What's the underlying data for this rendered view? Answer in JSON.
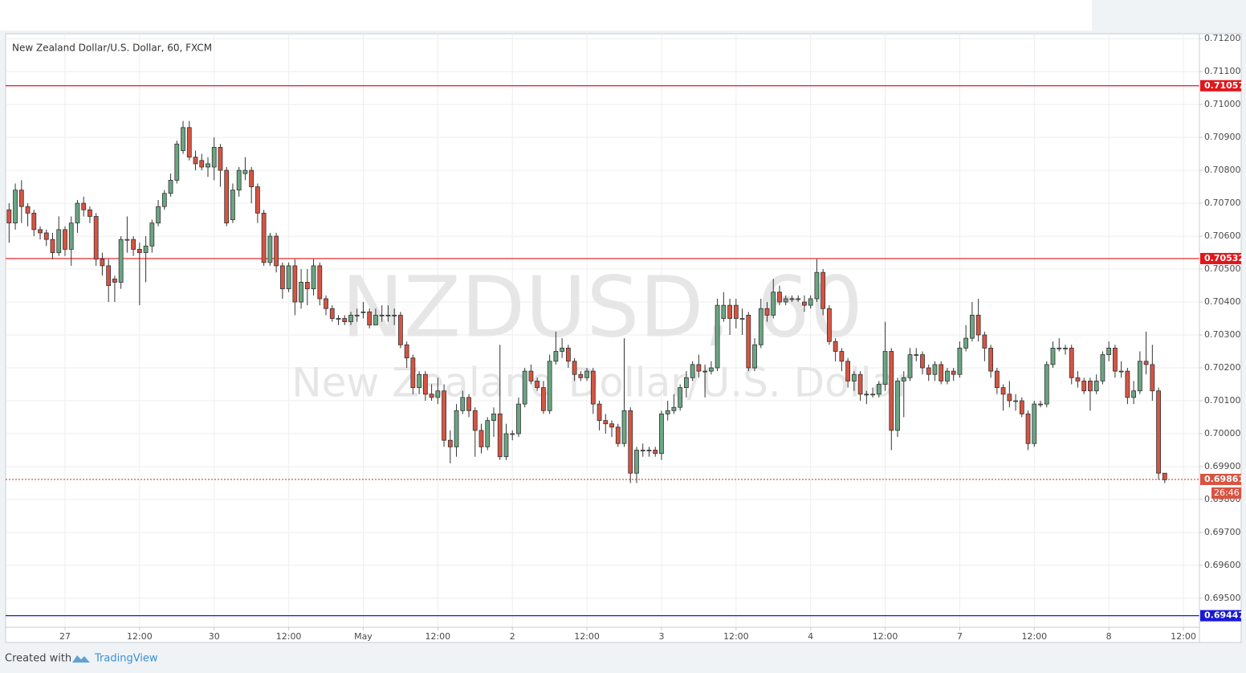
{
  "chart_data": {
    "type": "candlestick",
    "title": "New Zealand Dollar/U.S. Dollar, 60, FXCM",
    "watermark": {
      "symbol": "NZDUSD, 60",
      "description": "New Zealand Dollar/U.S. Dollar"
    },
    "up_color": "#6ba583",
    "down_color": "#d75442",
    "wick_color": "#333333",
    "grid": true,
    "xlim": [
      14.44,
      206.58
    ],
    "xticks": [
      {
        "value": 24,
        "label": "27"
      },
      {
        "value": 36,
        "label": "12:00"
      },
      {
        "value": 48,
        "label": "30"
      },
      {
        "value": 60,
        "label": "12:00"
      },
      {
        "value": 72,
        "label": "May"
      },
      {
        "value": 84,
        "label": "12:00"
      },
      {
        "value": 96,
        "label": "2"
      },
      {
        "value": 108,
        "label": "12:00"
      },
      {
        "value": 120,
        "label": "3"
      },
      {
        "value": 132,
        "label": "12:00"
      },
      {
        "value": 144,
        "label": "4"
      },
      {
        "value": 156,
        "label": "12:00"
      },
      {
        "value": 168,
        "label": "7"
      },
      {
        "value": 180,
        "label": "12:00"
      },
      {
        "value": 192,
        "label": "8"
      },
      {
        "value": 204,
        "label": "12:00"
      }
    ],
    "ylim": [
      0.69412,
      0.71215
    ],
    "yticks": [
      {
        "value": 0.695,
        "label": "0.69500"
      },
      {
        "value": 0.696,
        "label": "0.69600"
      },
      {
        "value": 0.697,
        "label": "0.69700"
      },
      {
        "value": 0.698,
        "label": "0.69800"
      },
      {
        "value": 0.699,
        "label": "0.69900"
      },
      {
        "value": 0.7,
        "label": "0.70000"
      },
      {
        "value": 0.701,
        "label": "0.70100"
      },
      {
        "value": 0.702,
        "label": "0.70200"
      },
      {
        "value": 0.703,
        "label": "0.70300"
      },
      {
        "value": 0.704,
        "label": "0.70400"
      },
      {
        "value": 0.705,
        "label": "0.70500"
      },
      {
        "value": 0.706,
        "label": "0.70600"
      },
      {
        "value": 0.707,
        "label": "0.70700"
      },
      {
        "value": 0.708,
        "label": "0.70800"
      },
      {
        "value": 0.709,
        "label": "0.70900"
      },
      {
        "value": 0.71,
        "label": "0.71000"
      },
      {
        "value": 0.711,
        "label": "0.71100"
      },
      {
        "value": 0.712,
        "label": "0.71200"
      }
    ],
    "levels": [
      {
        "value": 0.71057,
        "color": "#e0161b",
        "style": "solid"
      },
      {
        "value": 0.70532,
        "color": "#e0161b",
        "style": "solid"
      },
      {
        "value": 0.69861,
        "color": "#d75442",
        "style": "dotted"
      },
      {
        "value": 0.69447,
        "color": "#1a1ad6",
        "style": "solid"
      }
    ],
    "countdown": "26:46",
    "x": [
      15,
      16,
      17,
      18,
      19,
      20,
      21,
      22,
      23,
      24,
      25,
      26,
      27,
      28,
      29,
      30,
      31,
      32,
      33,
      34,
      35,
      36,
      37,
      38,
      39,
      40,
      41,
      42,
      43,
      44,
      45,
      46,
      47,
      48,
      49,
      50,
      51,
      52,
      53,
      54,
      55,
      56,
      57,
      58,
      59,
      60,
      61,
      62,
      63,
      64,
      65,
      66,
      67,
      68,
      69,
      70,
      71,
      72,
      73,
      74,
      75,
      76,
      77,
      78,
      79,
      80,
      81,
      82,
      83,
      84,
      85,
      86,
      87,
      88,
      89,
      90,
      91,
      92,
      93,
      94,
      95,
      96,
      97,
      98,
      99,
      100,
      101,
      102,
      103,
      104,
      105,
      106,
      107,
      108,
      109,
      110,
      111,
      112,
      113,
      114,
      115,
      116,
      117,
      118,
      119,
      120,
      121,
      122,
      123,
      124,
      125,
      126,
      127,
      128,
      129,
      130,
      131,
      132,
      133,
      134,
      135,
      136,
      137,
      138,
      139,
      140,
      141,
      142,
      143,
      144,
      145,
      146,
      147,
      148,
      149,
      150,
      151,
      152,
      153,
      154,
      155,
      156,
      157,
      158,
      159,
      160,
      161,
      162,
      163,
      164,
      165,
      166,
      167,
      168,
      169,
      170,
      171,
      172,
      173,
      174,
      175,
      176,
      177,
      178,
      179,
      180,
      181,
      182,
      183,
      184,
      185,
      186,
      187,
      188,
      189,
      190,
      191,
      192,
      193,
      194,
      195,
      196,
      197,
      198,
      199,
      200,
      201
    ],
    "open": [
      0.7068,
      0.7064,
      0.7074,
      0.7069,
      0.7067,
      0.7062,
      0.7061,
      0.7059,
      0.7055,
      0.7062,
      0.7056,
      0.7064,
      0.707,
      0.7068,
      0.7066,
      0.7053,
      0.7051,
      0.7047,
      0.7046,
      0.7059,
      0.7059,
      0.7056,
      0.7055,
      0.7057,
      0.7064,
      0.7069,
      0.7073,
      0.7077,
      0.7086,
      0.7093,
      0.7084,
      0.7083,
      0.7081,
      0.7081,
      0.7087,
      0.708,
      0.7065,
      0.7074,
      0.7079,
      0.708,
      0.7075,
      0.7067,
      0.7052,
      0.706,
      0.7051,
      0.7044,
      0.7051,
      0.704,
      0.7046,
      0.7044,
      0.7051,
      0.7041,
      0.7038,
      0.7035,
      0.7035,
      0.7034,
      0.7036,
      0.7037,
      0.7037,
      0.7033,
      0.7036,
      0.7036,
      0.7036,
      0.7036,
      0.7027,
      0.7023,
      0.7014,
      0.7018,
      0.7012,
      0.7011,
      0.7013,
      0.6998,
      0.6996,
      0.7007,
      0.7011,
      0.7007,
      0.7001,
      0.6996,
      0.7004,
      0.7006,
      0.6993,
      0.7,
      0.7,
      0.7009,
      0.7019,
      0.7016,
      0.7014,
      0.7007,
      0.7022,
      0.7025,
      0.7026,
      0.7022,
      0.7018,
      0.7017,
      0.7019,
      0.7009,
      0.7004,
      0.7003,
      0.7002,
      0.6997,
      0.7007,
      0.6988,
      0.6995,
      0.6995,
      0.6995,
      0.6994,
      0.7006,
      0.7007,
      0.7008,
      0.7014,
      0.7017,
      0.7021,
      0.7019,
      0.7019,
      0.702,
      0.7035,
      0.7039,
      0.7039,
      0.7035,
      0.7036,
      0.702,
      0.7027,
      0.7038,
      0.7036,
      0.7043,
      0.704,
      0.7041,
      0.7041,
      0.704,
      0.7039,
      0.7041,
      0.7049,
      0.7038,
      0.7028,
      0.7025,
      0.7022,
      0.7016,
      0.7018,
      0.7012,
      0.7012,
      0.7012,
      0.7015,
      0.7025,
      0.7001,
      0.7016,
      0.7017,
      0.7024,
      0.7024,
      0.702,
      0.7018,
      0.7021,
      0.7016,
      0.7019,
      0.7018,
      0.7026,
      0.7029,
      0.7036,
      0.703,
      0.7026,
      0.7019,
      0.7014,
      0.7012,
      0.701,
      0.701,
      0.7006,
      0.6997,
      0.7009,
      0.7009,
      0.7021,
      0.7026,
      0.7026,
      0.7026,
      0.7017,
      0.7016,
      0.7016,
      0.7013,
      0.7016,
      0.7024,
      0.7026,
      0.7019,
      0.7019,
      0.7011,
      0.7013,
      0.7022,
      0.7021,
      0.7013,
      0.6988
    ],
    "high": [
      0.707,
      0.7076,
      0.7077,
      0.707,
      0.7068,
      0.7063,
      0.7062,
      0.7061,
      0.7066,
      0.7063,
      0.7066,
      0.7071,
      0.7072,
      0.7069,
      0.7067,
      0.7055,
      0.7053,
      0.7048,
      0.706,
      0.7066,
      0.706,
      0.7058,
      0.706,
      0.7065,
      0.7071,
      0.7074,
      0.7079,
      0.7089,
      0.7095,
      0.7095,
      0.7086,
      0.7085,
      0.7084,
      0.709,
      0.7088,
      0.7081,
      0.7076,
      0.7081,
      0.7084,
      0.7081,
      0.7076,
      0.7068,
      0.7061,
      0.7061,
      0.7052,
      0.7052,
      0.7053,
      0.705,
      0.705,
      0.7053,
      0.7052,
      0.7042,
      0.7039,
      0.7036,
      0.7036,
      0.7037,
      0.7038,
      0.704,
      0.7038,
      0.7038,
      0.7039,
      0.7039,
      0.7038,
      0.7037,
      0.7028,
      0.7024,
      0.7019,
      0.7019,
      0.7015,
      0.7017,
      0.7015,
      0.7001,
      0.7009,
      0.7013,
      0.7012,
      0.7008,
      0.7003,
      0.7005,
      0.7008,
      0.7027,
      0.7003,
      0.7001,
      0.7011,
      0.702,
      0.7021,
      0.7017,
      0.7016,
      0.7024,
      0.7031,
      0.7029,
      0.7027,
      0.7023,
      0.7019,
      0.702,
      0.702,
      0.701,
      0.7006,
      0.7004,
      0.7003,
      0.7029,
      0.7008,
      0.6996,
      0.6997,
      0.6996,
      0.6996,
      0.7007,
      0.701,
      0.7012,
      0.7015,
      0.7019,
      0.7022,
      0.7024,
      0.7021,
      0.7022,
      0.7041,
      0.7043,
      0.7041,
      0.7041,
      0.7038,
      0.7037,
      0.7029,
      0.7041,
      0.704,
      0.7047,
      0.7045,
      0.7042,
      0.7042,
      0.7042,
      0.7042,
      0.7042,
      0.7053,
      0.705,
      0.7039,
      0.7029,
      0.7026,
      0.7023,
      0.7019,
      0.7019,
      0.7013,
      0.7014,
      0.7016,
      0.7034,
      0.7026,
      0.7017,
      0.7019,
      0.7026,
      0.7026,
      0.7025,
      0.7021,
      0.7022,
      0.7022,
      0.702,
      0.702,
      0.7028,
      0.7033,
      0.704,
      0.7041,
      0.7031,
      0.7027,
      0.702,
      0.7015,
      0.7016,
      0.7012,
      0.7011,
      0.7007,
      0.701,
      0.701,
      0.7022,
      0.7028,
      0.7029,
      0.7027,
      0.7027,
      0.7019,
      0.7017,
      0.7017,
      0.7018,
      0.7025,
      0.7028,
      0.7027,
      0.7022,
      0.702,
      0.7016,
      0.7025,
      0.7031,
      0.7027,
      0.7014,
      0.6988
    ],
    "low": [
      0.7058,
      0.7062,
      0.7064,
      0.7063,
      0.706,
      0.7059,
      0.7057,
      0.7053,
      0.7054,
      0.7054,
      0.7051,
      0.7061,
      0.7066,
      0.7064,
      0.7051,
      0.7048,
      0.704,
      0.704,
      0.7044,
      0.7055,
      0.7054,
      0.7039,
      0.7046,
      0.7055,
      0.7063,
      0.7068,
      0.7072,
      0.7076,
      0.7085,
      0.7083,
      0.708,
      0.708,
      0.7078,
      0.7077,
      0.7075,
      0.7063,
      0.7064,
      0.7072,
      0.7077,
      0.707,
      0.7064,
      0.7051,
      0.7051,
      0.7049,
      0.7041,
      0.7043,
      0.7036,
      0.7038,
      0.7039,
      0.7042,
      0.7039,
      0.7036,
      0.7034,
      0.7033,
      0.7033,
      0.7033,
      0.7034,
      0.7035,
      0.7032,
      0.7033,
      0.7034,
      0.7034,
      0.7033,
      0.7026,
      0.702,
      0.7012,
      0.7012,
      0.701,
      0.701,
      0.7009,
      0.6996,
      0.6991,
      0.6993,
      0.7006,
      0.7005,
      0.6993,
      0.6994,
      0.6995,
      0.6999,
      0.6992,
      0.6992,
      0.6998,
      0.6999,
      0.7008,
      0.7015,
      0.7013,
      0.7006,
      0.7006,
      0.7021,
      0.7023,
      0.702,
      0.7016,
      0.7016,
      0.7016,
      0.7006,
      0.7001,
      0.7,
      0.6999,
      0.6996,
      0.6996,
      0.6985,
      0.6985,
      0.6993,
      0.6993,
      0.6993,
      0.6992,
      0.7004,
      0.7006,
      0.7007,
      0.7011,
      0.7016,
      0.7017,
      0.7011,
      0.7018,
      0.7019,
      0.7034,
      0.703,
      0.7032,
      0.703,
      0.7019,
      0.7019,
      0.7026,
      0.7034,
      0.7035,
      0.7039,
      0.7039,
      0.704,
      0.704,
      0.7037,
      0.7038,
      0.704,
      0.7036,
      0.7027,
      0.7022,
      0.7019,
      0.7014,
      0.7013,
      0.701,
      0.7009,
      0.7011,
      0.7011,
      0.7013,
      0.6995,
      0.6999,
      0.7005,
      0.7016,
      0.7022,
      0.7018,
      0.7016,
      0.7016,
      0.7015,
      0.7015,
      0.7016,
      0.7017,
      0.7025,
      0.7028,
      0.7028,
      0.7022,
      0.7017,
      0.7012,
      0.7007,
      0.7008,
      0.7007,
      0.7005,
      0.6995,
      0.6996,
      0.7008,
      0.7008,
      0.702,
      0.7025,
      0.7024,
      0.7015,
      0.7014,
      0.7012,
      0.7007,
      0.7012,
      0.7015,
      0.7022,
      0.7017,
      0.7017,
      0.7009,
      0.7009,
      0.7012,
      0.7018,
      0.701,
      0.6986,
      0.6985
    ],
    "close": [
      0.7064,
      0.7074,
      0.7069,
      0.7067,
      0.7062,
      0.7061,
      0.7059,
      0.7055,
      0.7062,
      0.7056,
      0.7064,
      0.707,
      0.7068,
      0.7066,
      0.7053,
      0.7051,
      0.7045,
      0.7046,
      0.7059,
      0.7059,
      0.7056,
      0.7055,
      0.7057,
      0.7064,
      0.7069,
      0.7073,
      0.7077,
      0.7088,
      0.7093,
      0.7084,
      0.7082,
      0.7081,
      0.7082,
      0.7087,
      0.708,
      0.7064,
      0.7074,
      0.708,
      0.708,
      0.7075,
      0.7067,
      0.7052,
      0.706,
      0.7051,
      0.7044,
      0.7051,
      0.704,
      0.7046,
      0.7044,
      0.7051,
      0.7041,
      0.7038,
      0.7035,
      0.7035,
      0.7034,
      0.7036,
      0.7036,
      0.7037,
      0.7033,
      0.7036,
      0.7036,
      0.7036,
      0.7036,
      0.7027,
      0.7023,
      0.7014,
      0.7018,
      0.7012,
      0.7011,
      0.7013,
      0.6998,
      0.6996,
      0.7007,
      0.7011,
      0.7007,
      0.7001,
      0.6996,
      0.7004,
      0.7006,
      0.6993,
      0.7,
      0.7,
      0.7009,
      0.7019,
      0.7016,
      0.7014,
      0.7007,
      0.7022,
      0.7025,
      0.7026,
      0.7022,
      0.7018,
      0.7017,
      0.7019,
      0.7009,
      0.7004,
      0.7003,
      0.7002,
      0.6997,
      0.7007,
      0.6988,
      0.6995,
      0.6995,
      0.6995,
      0.6994,
      0.7006,
      0.7007,
      0.7008,
      0.7014,
      0.7017,
      0.7021,
      0.7019,
      0.7019,
      0.702,
      0.7039,
      0.7039,
      0.7035,
      0.7035,
      0.7035,
      0.702,
      0.7027,
      0.7038,
      0.7036,
      0.7043,
      0.704,
      0.7041,
      0.7041,
      0.7041,
      0.7039,
      0.7041,
      0.7049,
      0.7038,
      0.7028,
      0.7025,
      0.7022,
      0.7016,
      0.7018,
      0.7012,
      0.7012,
      0.7012,
      0.7015,
      0.7025,
      0.7001,
      0.7016,
      0.7017,
      0.7024,
      0.7024,
      0.702,
      0.7018,
      0.7021,
      0.7016,
      0.7019,
      0.7018,
      0.7026,
      0.7029,
      0.7036,
      0.703,
      0.7026,
      0.7019,
      0.7014,
      0.7012,
      0.701,
      0.701,
      0.7006,
      0.6997,
      0.7009,
      0.7009,
      0.7021,
      0.7026,
      0.7026,
      0.7026,
      0.7017,
      0.7016,
      0.7013,
      0.7013,
      0.7016,
      0.7024,
      0.7026,
      0.7019,
      0.7019,
      0.7011,
      0.7013,
      0.7022,
      0.7021,
      0.7013,
      0.6988,
      0.6986
    ]
  },
  "footer": {
    "prefix": "Created with",
    "brand": "TradingView"
  }
}
